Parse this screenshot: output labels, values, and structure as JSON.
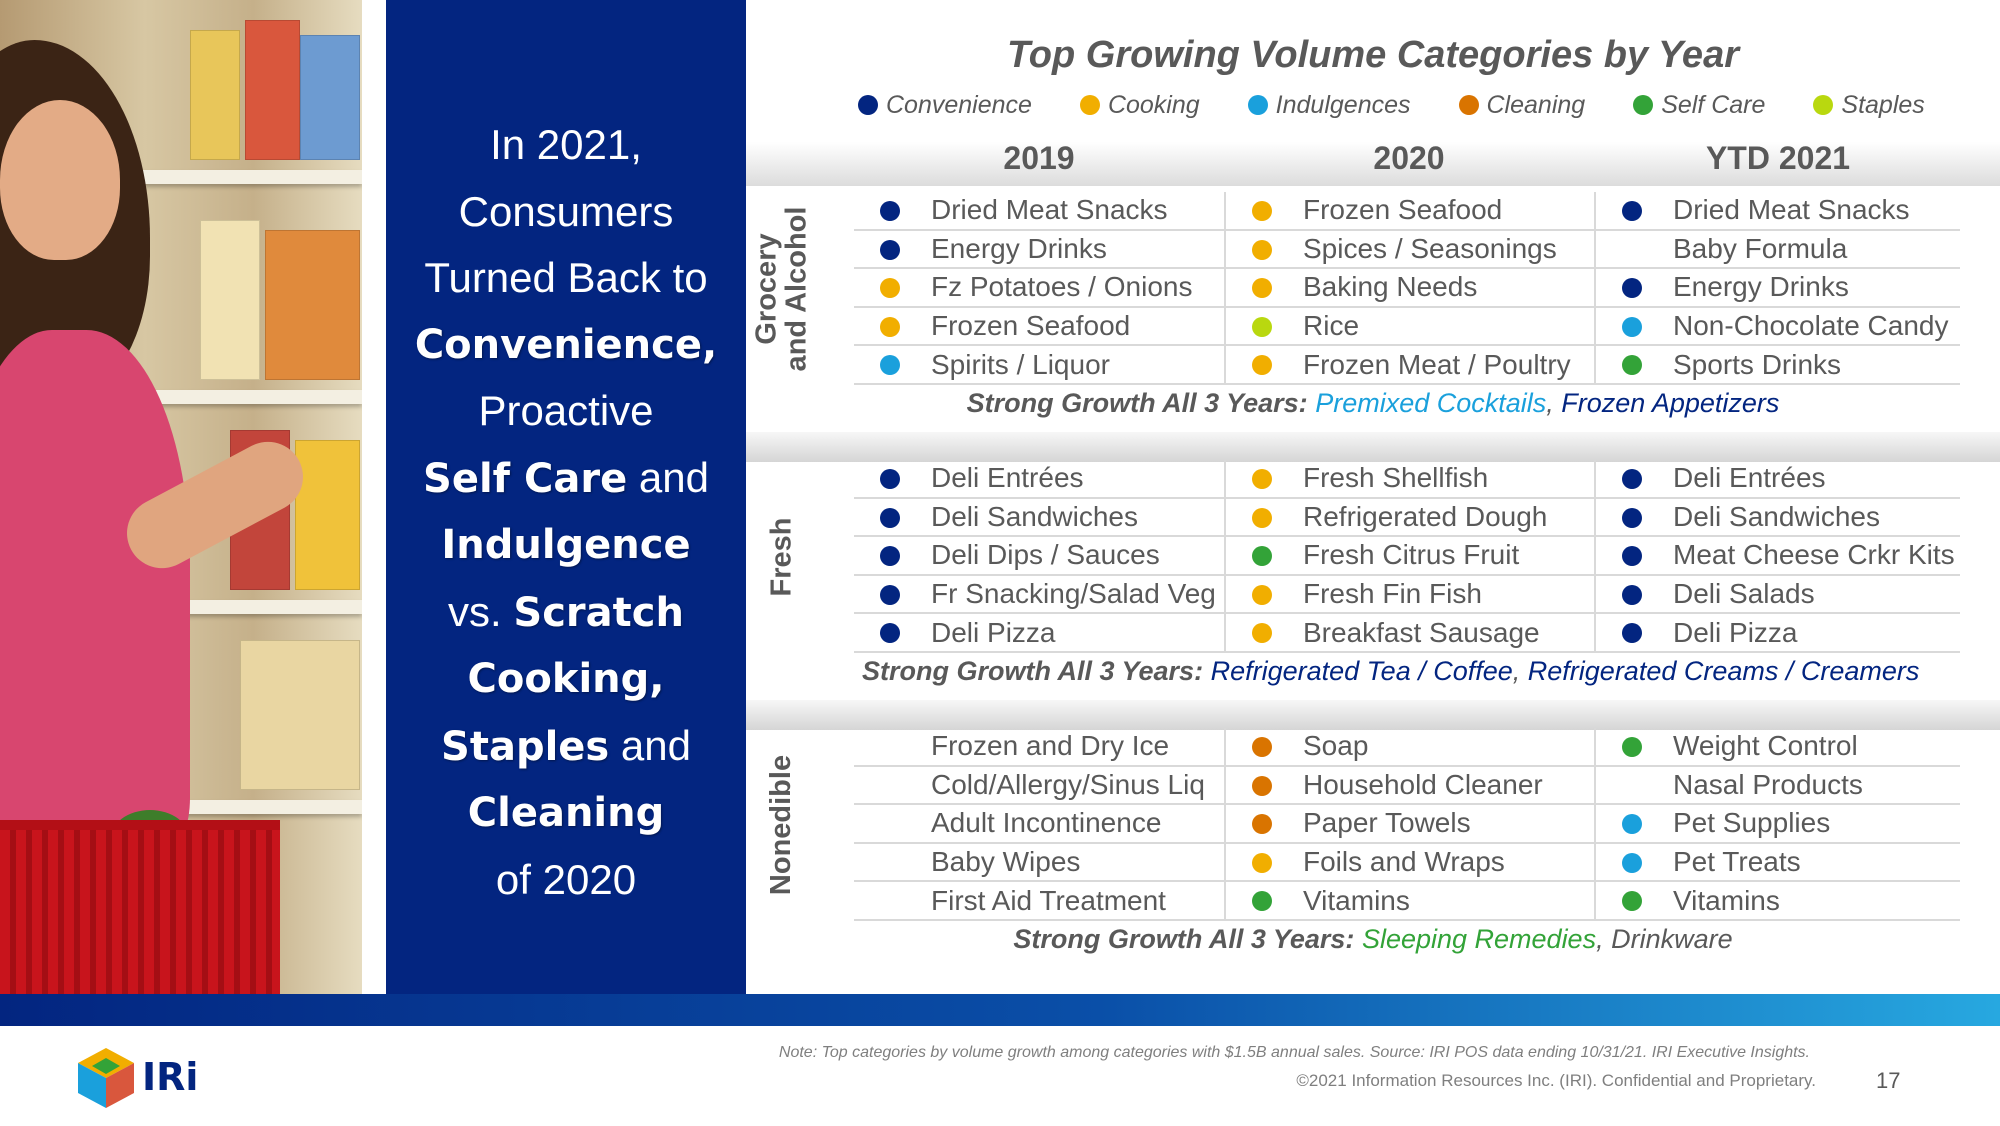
{
  "colors": {
    "convenience": "#032580",
    "cooking": "#f1ae00",
    "indulgences": "#1aa0dc",
    "cleaning": "#d97400",
    "self_care": "#33a338",
    "staples": "#b9d80f",
    "navy": "#032580",
    "gray_text": "#595959",
    "premixed": "#1aa0dc",
    "sleeping": "#33a338"
  },
  "headline": {
    "line1": "In 2021,",
    "line2": "Consumers",
    "line3": "Turned Back to",
    "convenience": "Convenience,",
    "proactive": "Proactive",
    "self_care": "Self Care",
    "and1": " and",
    "indulgence": "Indulgence",
    "vs": "vs. ",
    "scratch": "Scratch",
    "cooking": "Cooking,",
    "staples": "Staples",
    "and2": " and",
    "cleaning": "Cleaning",
    "of2020": "of 2020"
  },
  "title": "Top Growing Volume Categories by Year",
  "legend": [
    {
      "label": "Convenience",
      "color_key": "convenience"
    },
    {
      "label": "Cooking",
      "color_key": "cooking"
    },
    {
      "label": "Indulgences",
      "color_key": "indulgences"
    },
    {
      "label": "Cleaning",
      "color_key": "cleaning"
    },
    {
      "label": "Self Care",
      "color_key": "self_care"
    },
    {
      "label": "Staples",
      "color_key": "staples"
    }
  ],
  "years": [
    "2019",
    "2020",
    "YTD 2021"
  ],
  "sections": [
    {
      "label_line1": "Grocery",
      "label_line2": "and Alcohol",
      "rows": [
        [
          {
            "text": "Dried Meat Snacks",
            "dot": "convenience"
          },
          {
            "text": "Frozen Seafood",
            "dot": "cooking"
          },
          {
            "text": "Dried Meat Snacks",
            "dot": "convenience"
          }
        ],
        [
          {
            "text": "Energy Drinks",
            "dot": "convenience"
          },
          {
            "text": "Spices / Seasonings",
            "dot": "cooking"
          },
          {
            "text": "Baby Formula",
            "dot": ""
          }
        ],
        [
          {
            "text": "Fz Potatoes / Onions",
            "dot": "cooking"
          },
          {
            "text": "Baking Needs",
            "dot": "cooking"
          },
          {
            "text": "Energy Drinks",
            "dot": "convenience"
          }
        ],
        [
          {
            "text": "Frozen Seafood",
            "dot": "cooking"
          },
          {
            "text": "Rice",
            "dot": "staples"
          },
          {
            "text": "Non-Chocolate Candy",
            "dot": "indulgences"
          }
        ],
        [
          {
            "text": "Spirits / Liquor",
            "dot": "indulgences"
          },
          {
            "text": "Frozen Meat / Poultry",
            "dot": "cooking"
          },
          {
            "text": "Sports Drinks",
            "dot": "self_care"
          }
        ]
      ],
      "growth_label": "Strong Growth All 3 Years:",
      "growth_items": [
        {
          "text": "Premixed Cocktails",
          "color_key": "premixed"
        },
        {
          "text": "Frozen Appetizers",
          "color_key": "navy"
        }
      ]
    },
    {
      "label_line1": "Fresh",
      "label_line2": "",
      "rows": [
        [
          {
            "text": "Deli Entrées",
            "dot": "convenience"
          },
          {
            "text": "Fresh Shellfish",
            "dot": "cooking"
          },
          {
            "text": "Deli Entrées",
            "dot": "convenience"
          }
        ],
        [
          {
            "text": "Deli Sandwiches",
            "dot": "convenience"
          },
          {
            "text": "Refrigerated Dough",
            "dot": "cooking"
          },
          {
            "text": "Deli Sandwiches",
            "dot": "convenience"
          }
        ],
        [
          {
            "text": "Deli Dips / Sauces",
            "dot": "convenience"
          },
          {
            "text": "Fresh Citrus Fruit",
            "dot": "self_care"
          },
          {
            "text": "Meat Cheese Crkr Kits",
            "dot": "convenience"
          }
        ],
        [
          {
            "text": "Fr Snacking/Salad Veg",
            "dot": "convenience"
          },
          {
            "text": "Fresh Fin Fish",
            "dot": "cooking"
          },
          {
            "text": "Deli Salads",
            "dot": "convenience"
          }
        ],
        [
          {
            "text": "Deli Pizza",
            "dot": "convenience"
          },
          {
            "text": "Breakfast Sausage",
            "dot": "cooking"
          },
          {
            "text": "Deli Pizza",
            "dot": "convenience"
          }
        ]
      ],
      "growth_label": "Strong Growth All 3 Years:",
      "growth_items": [
        {
          "text": "Refrigerated Tea / Coffee",
          "color_key": "navy"
        },
        {
          "text": "Refrigerated Creams / Creamers",
          "color_key": "navy"
        }
      ]
    },
    {
      "label_line1": "Nonedible",
      "label_line2": "",
      "rows": [
        [
          {
            "text": "Frozen and Dry Ice",
            "dot": ""
          },
          {
            "text": "Soap",
            "dot": "cleaning"
          },
          {
            "text": "Weight Control",
            "dot": "self_care"
          }
        ],
        [
          {
            "text": "Cold/Allergy/Sinus Liq",
            "dot": ""
          },
          {
            "text": "Household Cleaner",
            "dot": "cleaning"
          },
          {
            "text": "Nasal Products",
            "dot": ""
          }
        ],
        [
          {
            "text": "Adult Incontinence",
            "dot": ""
          },
          {
            "text": "Paper Towels",
            "dot": "cleaning"
          },
          {
            "text": "Pet Supplies",
            "dot": "indulgences"
          }
        ],
        [
          {
            "text": "Baby Wipes",
            "dot": ""
          },
          {
            "text": "Foils and Wraps",
            "dot": "cooking"
          },
          {
            "text": "Pet Treats",
            "dot": "indulgences"
          }
        ],
        [
          {
            "text": "First Aid Treatment",
            "dot": ""
          },
          {
            "text": "Vitamins",
            "dot": "self_care"
          },
          {
            "text": "Vitamins",
            "dot": "self_care"
          }
        ]
      ],
      "growth_label": "Strong Growth All 3 Years:",
      "growth_items": [
        {
          "text": "Sleeping Remedies",
          "color_key": "sleeping"
        },
        {
          "text": "Drinkware",
          "color_key": "gray_text"
        }
      ]
    }
  ],
  "footer": {
    "note": "Note: Top categories by volume growth among categories with $1.5B annual sales. Source: IRI  POS data ending 10/31/21. IRI Executive Insights.",
    "copyright": "©2021 Information Resources Inc. (IRI). Confidential and Proprietary.",
    "page": "17",
    "logo_text": "IRi"
  }
}
